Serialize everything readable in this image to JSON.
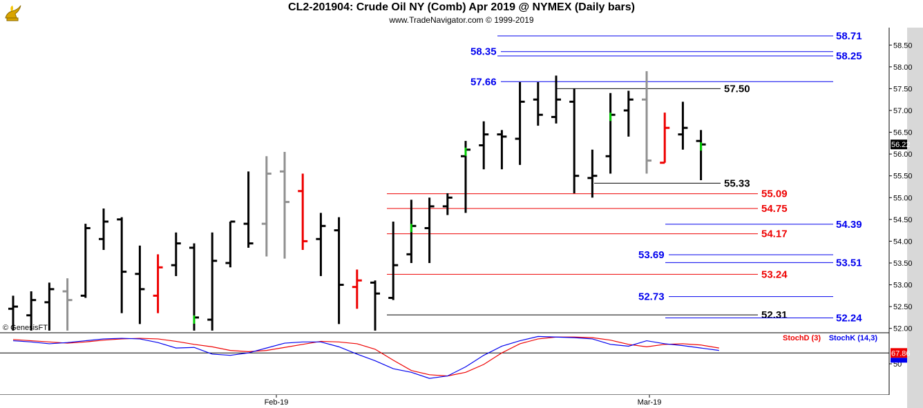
{
  "header": {
    "title": "CL2-201904:  Crude Oil NY (Comb) Apr 2019 @ NYMEX  (Daily bars)",
    "subtitle": "www.TradeNavigator.com © 1999-2019"
  },
  "watermark": "© GenesisFT",
  "colors": {
    "blue": "#0000ee",
    "red": "#ee0000",
    "black": "#000000",
    "gray": "#909090",
    "green": "#00cc00"
  },
  "chart_data": [
    {
      "type": "bar",
      "subtype": "ohlc",
      "ylim": [
        51.9,
        58.9
      ],
      "y_ticks": [
        "52.00",
        "52.50",
        "53.00",
        "53.50",
        "54.00",
        "54.50",
        "55.00",
        "55.50",
        "56.00",
        "56.50",
        "57.00",
        "57.50",
        "58.00",
        "58.50"
      ],
      "x_ticks": [
        "Feb-19",
        "Mar-19"
      ],
      "last_price": "56.22",
      "bars": [
        {
          "o": 52.45,
          "h": 52.75,
          "l": 51.95,
          "c": 52.5,
          "color": "black"
        },
        {
          "o": 52.3,
          "h": 52.85,
          "l": 51.95,
          "c": 52.65,
          "color": "black"
        },
        {
          "o": 52.6,
          "h": 53.05,
          "l": 51.95,
          "c": 52.9,
          "color": "black"
        },
        {
          "o": 52.85,
          "h": 53.15,
          "l": 51.95,
          "c": 52.65,
          "color": "gray"
        },
        {
          "o": 52.75,
          "h": 54.4,
          "l": 52.7,
          "c": 54.3,
          "color": "black"
        },
        {
          "o": 54.05,
          "h": 54.75,
          "l": 53.8,
          "c": 54.45,
          "color": "black"
        },
        {
          "o": 54.5,
          "h": 54.55,
          "l": 52.35,
          "c": 53.3,
          "color": "black"
        },
        {
          "o": 53.25,
          "h": 53.9,
          "l": 52.1,
          "c": 52.9,
          "color": "black"
        },
        {
          "o": 52.75,
          "h": 53.7,
          "l": 52.35,
          "c": 53.4,
          "color": "red"
        },
        {
          "o": 53.45,
          "h": 54.2,
          "l": 53.2,
          "c": 53.95,
          "color": "black"
        },
        {
          "o": 53.85,
          "h": 53.95,
          "l": 51.95,
          "c": 52.25,
          "color": "black",
          "close_color": "green"
        },
        {
          "o": 52.2,
          "h": 54.2,
          "l": 51.95,
          "c": 53.55,
          "color": "black"
        },
        {
          "o": 53.5,
          "h": 54.45,
          "l": 53.4,
          "c": 54.45,
          "color": "black"
        },
        {
          "o": 54.4,
          "h": 55.6,
          "l": 53.85,
          "c": 53.95,
          "color": "black"
        },
        {
          "o": 54.4,
          "h": 55.95,
          "l": 53.65,
          "c": 55.55,
          "color": "gray"
        },
        {
          "o": 55.6,
          "h": 56.05,
          "l": 53.6,
          "c": 54.9,
          "color": "gray"
        },
        {
          "o": 55.15,
          "h": 55.55,
          "l": 53.8,
          "c": 54.0,
          "color": "red"
        },
        {
          "o": 54.05,
          "h": 54.65,
          "l": 53.2,
          "c": 54.35,
          "color": "black"
        },
        {
          "o": 54.25,
          "h": 54.55,
          "l": 52.1,
          "c": 53.0,
          "color": "black"
        },
        {
          "o": 52.95,
          "h": 53.35,
          "l": 52.45,
          "c": 53.1,
          "color": "red"
        },
        {
          "o": 53.05,
          "h": 53.1,
          "l": 51.95,
          "c": 52.8,
          "color": "black"
        },
        {
          "o": 52.7,
          "h": 54.45,
          "l": 52.65,
          "c": 53.45,
          "color": "black"
        },
        {
          "o": 53.7,
          "h": 54.95,
          "l": 53.5,
          "c": 54.35,
          "color": "black",
          "close_color": "green"
        },
        {
          "o": 54.3,
          "h": 55.0,
          "l": 53.5,
          "c": 54.8,
          "color": "black"
        },
        {
          "o": 54.8,
          "h": 55.1,
          "l": 54.6,
          "c": 55.0,
          "color": "black"
        },
        {
          "o": 55.95,
          "h": 56.3,
          "l": 54.65,
          "c": 56.1,
          "color": "black",
          "close_color": "green"
        },
        {
          "o": 56.2,
          "h": 56.75,
          "l": 55.65,
          "c": 56.45,
          "color": "black"
        },
        {
          "o": 56.45,
          "h": 56.55,
          "l": 55.65,
          "c": 56.4,
          "color": "black"
        },
        {
          "o": 56.35,
          "h": 57.65,
          "l": 55.75,
          "c": 57.2,
          "color": "black"
        },
        {
          "o": 57.25,
          "h": 57.65,
          "l": 56.65,
          "c": 56.9,
          "color": "black"
        },
        {
          "o": 56.85,
          "h": 57.8,
          "l": 56.7,
          "c": 57.25,
          "color": "black"
        },
        {
          "o": 57.2,
          "h": 57.5,
          "l": 55.1,
          "c": 55.5,
          "color": "black"
        },
        {
          "o": 55.45,
          "h": 56.1,
          "l": 55.0,
          "c": 55.5,
          "color": "black"
        },
        {
          "o": 55.95,
          "h": 57.4,
          "l": 55.55,
          "c": 56.9,
          "color": "black",
          "close_color": "green"
        },
        {
          "o": 57.0,
          "h": 57.45,
          "l": 56.4,
          "c": 57.25,
          "color": "black"
        },
        {
          "o": 57.25,
          "h": 57.9,
          "l": 55.55,
          "c": 55.85,
          "color": "gray"
        },
        {
          "o": 55.8,
          "h": 56.95,
          "l": 55.8,
          "c": 56.6,
          "color": "red"
        },
        {
          "o": 56.45,
          "h": 57.2,
          "l": 56.1,
          "c": 56.6,
          "color": "black"
        },
        {
          "o": 56.3,
          "h": 56.55,
          "l": 55.4,
          "c": 56.22,
          "color": "black",
          "close_color": "green"
        }
      ],
      "levels": [
        {
          "value": 58.71,
          "label": "58.71",
          "color": "blue",
          "label_side": "right"
        },
        {
          "value": 58.35,
          "label": "58.35",
          "color": "blue",
          "label_side": "left"
        },
        {
          "value": 58.25,
          "label": "58.25",
          "color": "blue",
          "label_side": "right"
        },
        {
          "value": 57.66,
          "label": "57.66",
          "color": "blue",
          "label_side": "left"
        },
        {
          "value": 57.5,
          "label": "57.50",
          "color": "black",
          "label_side": "right"
        },
        {
          "value": 55.33,
          "label": "55.33",
          "color": "black",
          "label_side": "right"
        },
        {
          "value": 55.09,
          "label": "55.09",
          "color": "red",
          "label_side": "right"
        },
        {
          "value": 54.75,
          "label": "54.75",
          "color": "red",
          "label_side": "right"
        },
        {
          "value": 54.39,
          "label": "54.39",
          "color": "blue",
          "label_side": "right"
        },
        {
          "value": 54.17,
          "label": "54.17",
          "color": "red",
          "label_side": "right"
        },
        {
          "value": 53.69,
          "label": "53.69",
          "color": "blue",
          "label_side": "left"
        },
        {
          "value": 53.51,
          "label": "53.51",
          "color": "blue",
          "label_side": "right"
        },
        {
          "value": 53.24,
          "label": "53.24",
          "color": "red",
          "label_side": "right"
        },
        {
          "value": 52.73,
          "label": "52.73",
          "color": "blue",
          "label_side": "left"
        },
        {
          "value": 52.31,
          "label": "52.31",
          "color": "black",
          "label_side": "right"
        },
        {
          "value": 52.24,
          "label": "52.24",
          "color": "blue",
          "label_side": "right"
        }
      ]
    },
    {
      "type": "line",
      "ylim": [
        0,
        100
      ],
      "y_ticks": [
        "50"
      ],
      "readout": "67.86",
      "series": [
        {
          "name": "StochD (3)",
          "color": "red",
          "values": [
            90,
            88,
            86,
            84,
            86,
            89,
            91,
            92,
            91,
            87,
            82,
            78,
            72,
            70,
            72,
            77,
            82,
            87,
            86,
            83,
            74,
            56,
            39,
            32,
            30,
            36,
            49,
            68,
            83,
            91,
            94,
            94,
            93,
            89,
            82,
            78,
            82,
            83,
            81,
            76
          ]
        },
        {
          "name": "StochK (14,3)",
          "color": "blue",
          "values": [
            88,
            86,
            83,
            85,
            88,
            91,
            92,
            91,
            85,
            76,
            77,
            66,
            64,
            68,
            76,
            84,
            86,
            86,
            78,
            66,
            55,
            42,
            36,
            26,
            30,
            45,
            64,
            79,
            88,
            95,
            94,
            93,
            91,
            82,
            79,
            88,
            83,
            80,
            76,
            72
          ]
        }
      ]
    }
  ]
}
